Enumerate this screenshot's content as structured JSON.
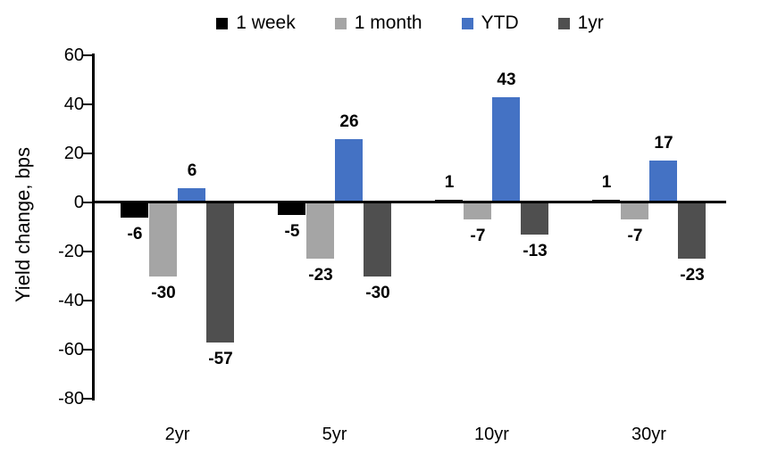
{
  "chart_data": {
    "type": "bar",
    "title": "",
    "xlabel": "",
    "ylabel": "Yield change, bps",
    "categories": [
      "2yr",
      "5yr",
      "10yr",
      "30yr"
    ],
    "series": [
      {
        "name": "1 week",
        "color": "#000000",
        "values": [
          -6,
          -5,
          1,
          1
        ]
      },
      {
        "name": "1 month",
        "color": "#A5A5A5",
        "values": [
          -30,
          -23,
          -7,
          -7
        ]
      },
      {
        "name": "YTD",
        "color": "#4472C4",
        "values": [
          6,
          26,
          43,
          17
        ]
      },
      {
        "name": "1yr",
        "color": "#4F4F4F",
        "values": [
          -57,
          -30,
          -13,
          -23
        ]
      }
    ],
    "ylim": [
      -80,
      60
    ],
    "yticks": [
      60,
      40,
      20,
      0,
      -20,
      -40,
      -60,
      -80
    ],
    "show_value_labels": true,
    "grid": false,
    "legend_position": "top",
    "background_color": "#ffffff",
    "axis_color": "#000000"
  }
}
